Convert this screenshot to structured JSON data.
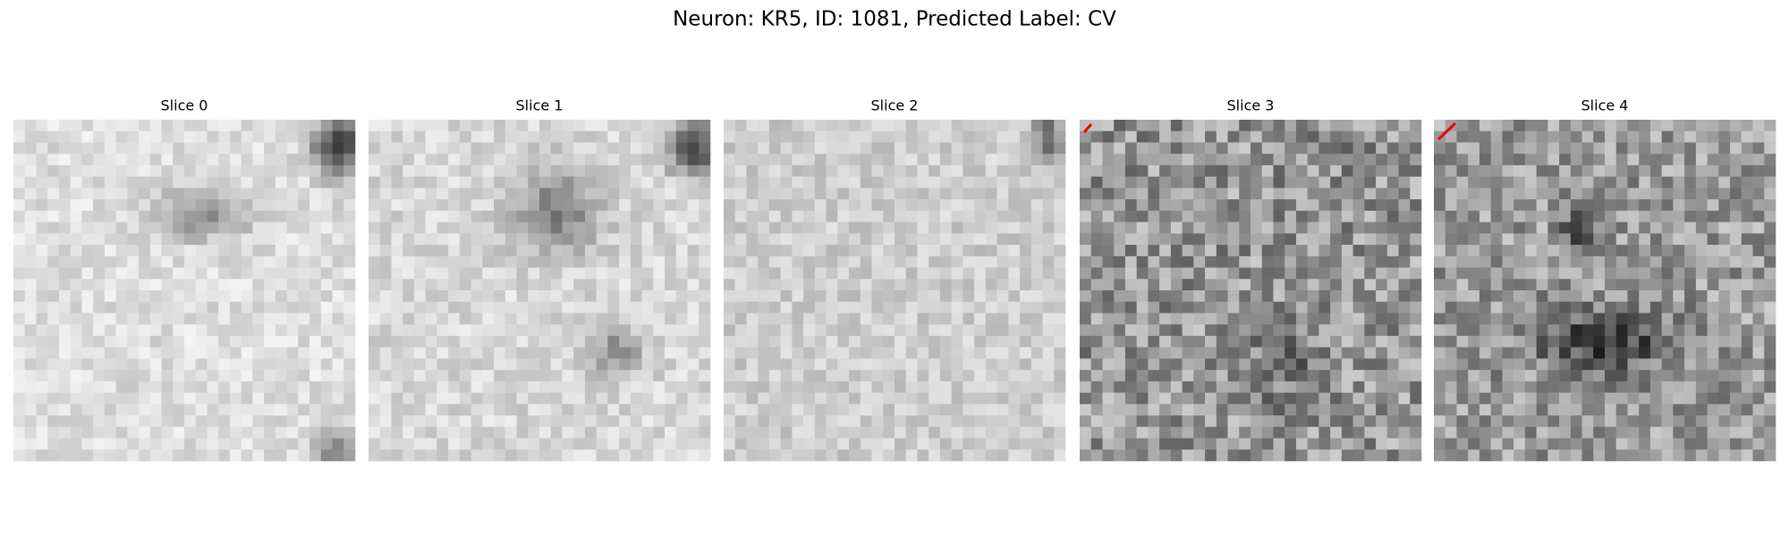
{
  "title": "Neuron: KR5, ID: 1081, Predicted Label: CV",
  "panels": [
    {
      "title": "Slice 0"
    },
    {
      "title": "Slice 1"
    },
    {
      "title": "Slice 2"
    },
    {
      "title": "Slice 3"
    },
    {
      "title": "Slice 4"
    }
  ]
}
